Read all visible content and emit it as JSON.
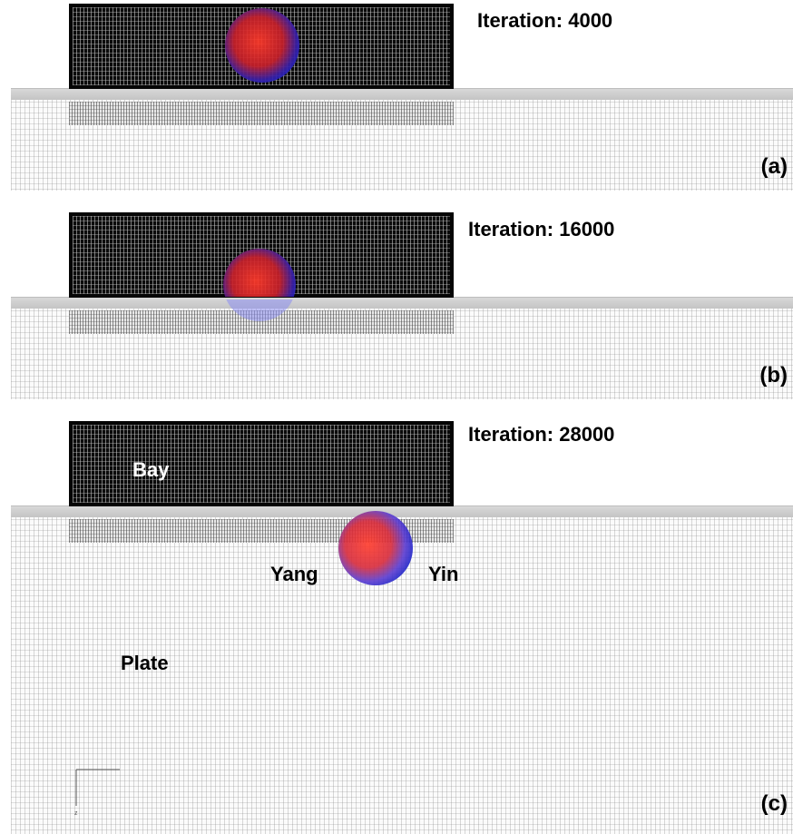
{
  "panels": [
    {
      "iteration": "Iteration: 4000",
      "label": "(a)"
    },
    {
      "iteration": "Iteration: 16000",
      "label": "(b)"
    },
    {
      "iteration": "Iteration: 28000",
      "label": "(c)"
    }
  ],
  "regions": {
    "bay": "Bay",
    "plate": "Plate",
    "yang": "Yang",
    "yin": "Yin"
  },
  "axes": {
    "horizontal": "",
    "vertical": "z"
  },
  "colors": {
    "bay_mesh": "#0b0b0b",
    "plate_mesh": "#fbfbfb",
    "bubble_red": "#e8201e",
    "bubble_blue": "#1a22c8"
  }
}
